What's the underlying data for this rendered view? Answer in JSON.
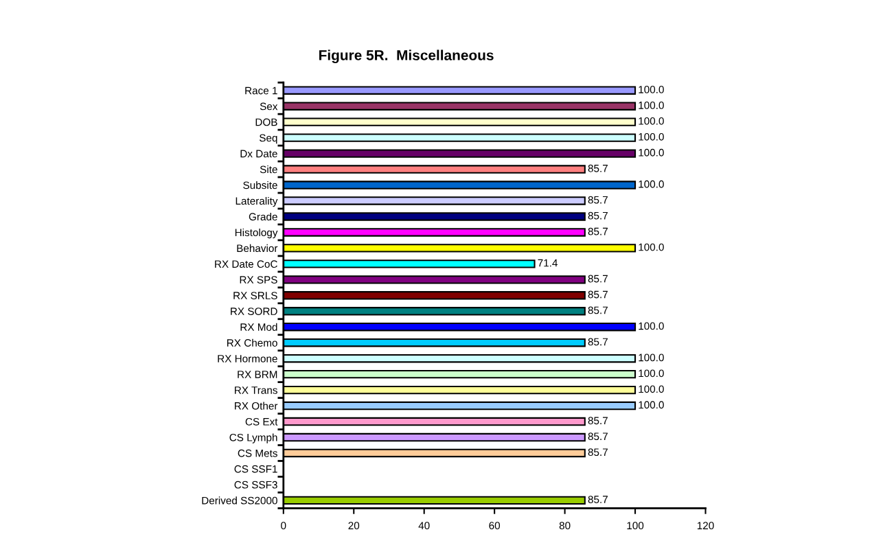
{
  "chart_data": {
    "type": "bar",
    "orientation": "horizontal",
    "title": "Figure 5R.  Miscellaneous",
    "categories": [
      "Race 1",
      "Sex",
      "DOB",
      "Seq",
      "Dx Date",
      "Site",
      "Subsite",
      "Laterality",
      "Grade",
      "Histology",
      "Behavior",
      "RX Date CoC",
      "RX SPS",
      "RX SRLS",
      "RX SORD",
      "RX Mod",
      "RX Chemo",
      "RX Hormone",
      "RX BRM",
      "RX Trans",
      "RX Other",
      "CS Ext",
      "CS Lymph",
      "CS Mets",
      "CS SSF1",
      "CS SSF3",
      "Derived SS2000"
    ],
    "values": [
      100.0,
      100.0,
      100.0,
      100.0,
      100.0,
      85.7,
      100.0,
      85.7,
      85.7,
      85.7,
      100.0,
      71.4,
      85.7,
      85.7,
      85.7,
      100.0,
      85.7,
      100.0,
      100.0,
      100.0,
      100.0,
      85.7,
      85.7,
      85.7,
      null,
      null,
      85.7
    ],
    "value_labels": [
      "100.0",
      "100.0",
      "100.0",
      "100.0",
      "100.0",
      "85.7",
      "100.0",
      "85.7",
      "85.7",
      "85.7",
      "100.0",
      "71.4",
      "85.7",
      "85.7",
      "85.7",
      "100.0",
      "85.7",
      "100.0",
      "100.0",
      "100.0",
      "100.0",
      "85.7",
      "85.7",
      "85.7",
      null,
      null,
      "85.7"
    ],
    "colors": [
      "#9999ff",
      "#993366",
      "#ffffcc",
      "#ccffff",
      "#660066",
      "#ff8080",
      "#0066cc",
      "#ccccff",
      "#000080",
      "#ff00ff",
      "#ffff00",
      "#00ffff",
      "#800080",
      "#800000",
      "#008080",
      "#0000ff",
      "#00ccff",
      "#ccffff",
      "#ccffcc",
      "#ffff99",
      "#99ccff",
      "#ff99cc",
      "#cc99ff",
      "#ffcc99",
      "#3366ff",
      "#33cccc",
      "#99cc00"
    ],
    "xlim": [
      0,
      120
    ],
    "xticks": [
      0,
      20,
      40,
      60,
      80,
      100,
      120
    ],
    "grid": false,
    "legend": false
  }
}
